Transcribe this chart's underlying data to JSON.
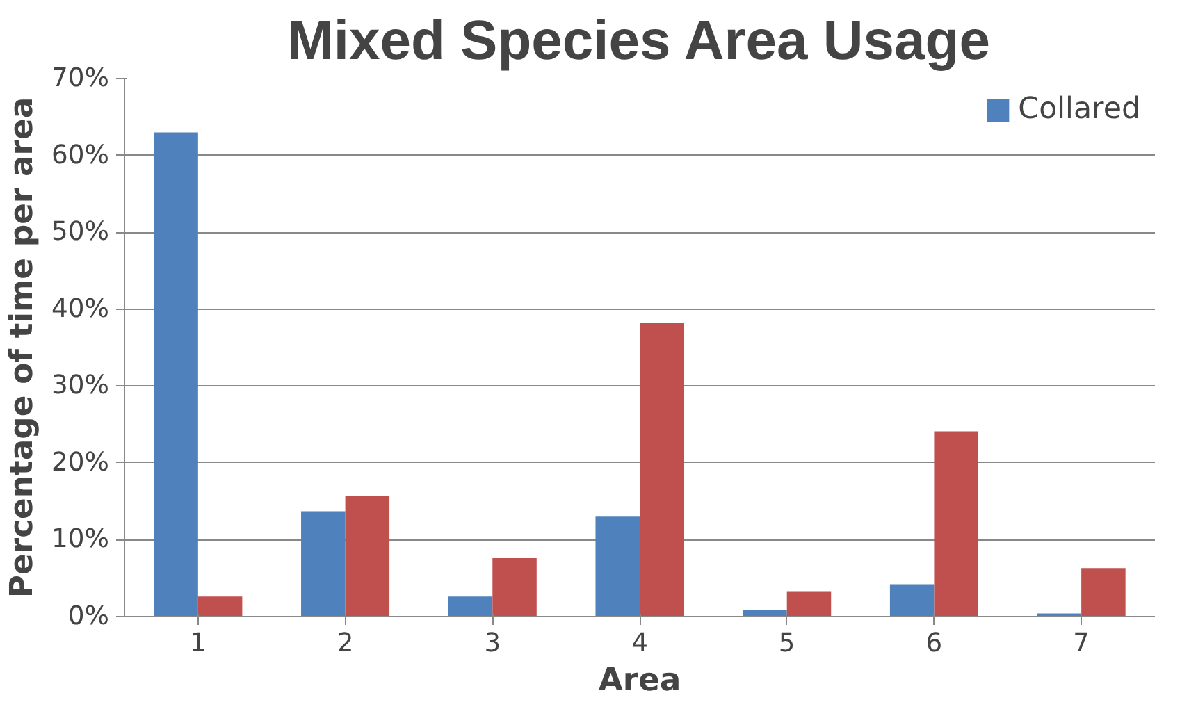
{
  "chart_data": {
    "type": "bar",
    "title": "Mixed Species Area Usage",
    "xlabel": "Area",
    "ylabel": "Percentage of time per area",
    "categories": [
      "1",
      "2",
      "3",
      "4",
      "5",
      "6",
      "7"
    ],
    "series": [
      {
        "name": "Collared",
        "color": "#4f81bd",
        "values": [
          63,
          13.7,
          2.6,
          13,
          0.9,
          4.2,
          0.4
        ]
      },
      {
        "color": "#c0504d",
        "values": [
          2.6,
          15.7,
          7.6,
          38.2,
          3.3,
          24.1,
          6.3
        ]
      }
    ],
    "ylim": [
      0,
      70
    ],
    "yticks": [
      {
        "value": 0,
        "label": "0%"
      },
      {
        "value": 10,
        "label": "10%"
      },
      {
        "value": 20,
        "label": "20%"
      },
      {
        "value": 30,
        "label": "30%"
      },
      {
        "value": 40,
        "label": "40%"
      },
      {
        "value": 50,
        "label": "50%"
      },
      {
        "value": 60,
        "label": "60%"
      },
      {
        "value": 70,
        "label": "70%"
      }
    ],
    "grid": "y",
    "legend": "top right"
  }
}
